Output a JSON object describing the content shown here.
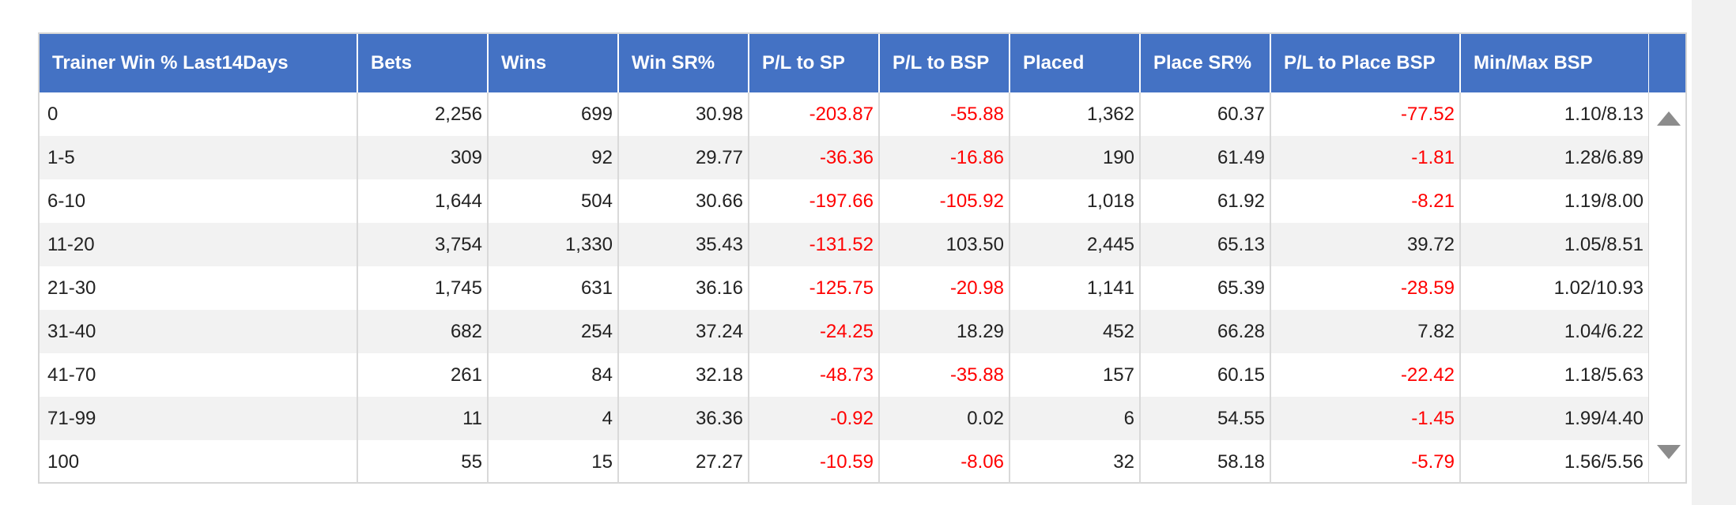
{
  "table": {
    "columns": [
      "Trainer Win % Last14Days",
      "Bets",
      "Wins",
      "Win SR%",
      "P/L to SP",
      "P/L to BSP",
      "Placed",
      "Place SR%",
      "P/L to Place BSP",
      "Min/Max BSP"
    ],
    "rows": [
      [
        "0",
        "2,256",
        "699",
        "30.98",
        "-203.87",
        "-55.88",
        "1,362",
        "60.37",
        "-77.52",
        "1.10/8.13"
      ],
      [
        "1-5",
        "309",
        "92",
        "29.77",
        "-36.36",
        "-16.86",
        "190",
        "61.49",
        "-1.81",
        "1.28/6.89"
      ],
      [
        "6-10",
        "1,644",
        "504",
        "30.66",
        "-197.66",
        "-105.92",
        "1,018",
        "61.92",
        "-8.21",
        "1.19/8.00"
      ],
      [
        "11-20",
        "3,754",
        "1,330",
        "35.43",
        "-131.52",
        "103.50",
        "2,445",
        "65.13",
        "39.72",
        "1.05/8.51"
      ],
      [
        "21-30",
        "1,745",
        "631",
        "36.16",
        "-125.75",
        "-20.98",
        "1,141",
        "65.39",
        "-28.59",
        "1.02/10.93"
      ],
      [
        "31-40",
        "682",
        "254",
        "37.24",
        "-24.25",
        "18.29",
        "452",
        "66.28",
        "7.82",
        "1.04/6.22"
      ],
      [
        "41-70",
        "261",
        "84",
        "32.18",
        "-48.73",
        "-35.88",
        "157",
        "60.15",
        "-22.42",
        "1.18/5.63"
      ],
      [
        "71-99",
        "11",
        "4",
        "36.36",
        "-0.92",
        "0.02",
        "6",
        "54.55",
        "-1.45",
        "1.99/4.40"
      ],
      [
        "100",
        "55",
        "15",
        "27.27",
        "-10.59",
        "-8.06",
        "32",
        "58.18",
        "-5.79",
        "1.56/5.56"
      ]
    ]
  },
  "scrollbar": {
    "up_icon": "triangle-up-icon",
    "down_icon": "triangle-down-icon"
  },
  "colors": {
    "header_bg": "#4472c4",
    "header_text": "#ffffff",
    "negative": "#ff0000",
    "stripe": "#f2f2f2"
  }
}
